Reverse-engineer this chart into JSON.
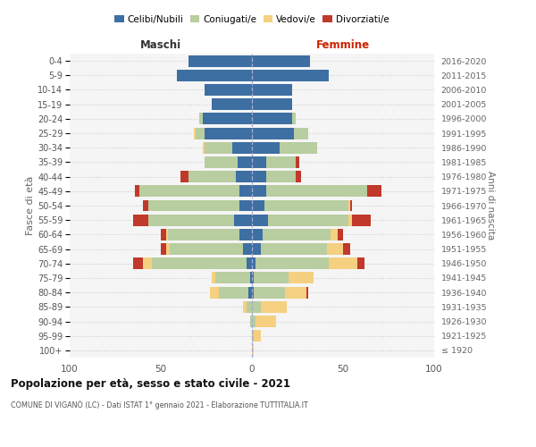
{
  "age_groups": [
    "100+",
    "95-99",
    "90-94",
    "85-89",
    "80-84",
    "75-79",
    "70-74",
    "65-69",
    "60-64",
    "55-59",
    "50-54",
    "45-49",
    "40-44",
    "35-39",
    "30-34",
    "25-29",
    "20-24",
    "15-19",
    "10-14",
    "5-9",
    "0-4"
  ],
  "birth_years": [
    "≤ 1920",
    "1921-1925",
    "1926-1930",
    "1931-1935",
    "1936-1940",
    "1941-1945",
    "1946-1950",
    "1951-1955",
    "1956-1960",
    "1961-1965",
    "1966-1970",
    "1971-1975",
    "1976-1980",
    "1981-1985",
    "1986-1990",
    "1991-1995",
    "1996-2000",
    "2001-2005",
    "2006-2010",
    "2011-2015",
    "2016-2020"
  ],
  "male": {
    "celibi": [
      0,
      0,
      0,
      0,
      2,
      1,
      3,
      5,
      7,
      10,
      7,
      7,
      9,
      8,
      11,
      26,
      27,
      22,
      26,
      41,
      35
    ],
    "coniugati": [
      0,
      0,
      1,
      3,
      16,
      19,
      52,
      40,
      39,
      47,
      50,
      55,
      26,
      18,
      15,
      5,
      2,
      0,
      0,
      0,
      0
    ],
    "vedovi": [
      0,
      0,
      0,
      2,
      5,
      2,
      5,
      2,
      1,
      0,
      0,
      0,
      0,
      0,
      1,
      1,
      0,
      0,
      0,
      0,
      0
    ],
    "divorziati": [
      0,
      0,
      0,
      0,
      0,
      0,
      5,
      3,
      3,
      8,
      3,
      2,
      4,
      0,
      0,
      0,
      0,
      0,
      0,
      0,
      0
    ]
  },
  "female": {
    "nubili": [
      0,
      0,
      0,
      0,
      1,
      1,
      2,
      5,
      6,
      9,
      7,
      8,
      8,
      8,
      15,
      23,
      22,
      22,
      22,
      42,
      32
    ],
    "coniugate": [
      0,
      1,
      2,
      5,
      17,
      19,
      40,
      36,
      37,
      44,
      46,
      55,
      16,
      16,
      21,
      8,
      2,
      0,
      0,
      0,
      0
    ],
    "vedove": [
      1,
      4,
      11,
      14,
      12,
      14,
      16,
      9,
      4,
      2,
      1,
      0,
      0,
      0,
      0,
      0,
      0,
      0,
      0,
      0,
      0
    ],
    "divorziate": [
      0,
      0,
      0,
      0,
      1,
      0,
      4,
      4,
      3,
      10,
      1,
      8,
      3,
      2,
      0,
      0,
      0,
      0,
      0,
      0,
      0
    ]
  },
  "colors": {
    "celibi": "#3d6fa3",
    "coniugati": "#b8cda0",
    "vedovi": "#f5d080",
    "divorziati": "#c0392b"
  },
  "title": "Popolazione per età, sesso e stato civile - 2021",
  "subtitle": "COMUNE DI VIGANÒ (LC) - Dati ISTAT 1° gennaio 2021 - Elaborazione TUTTITALIA.IT",
  "maschi_label": "Maschi",
  "femmine_label": "Femmine",
  "ylabel_left": "Fasce di età",
  "ylabel_right": "Anni di nascita",
  "xlim": 100,
  "legend_labels": [
    "Celibi/Nubili",
    "Coniugati/e",
    "Vedovi/e",
    "Divorziati/e"
  ],
  "bg_color": "#f5f5f5",
  "grid_color": "#cccccc"
}
